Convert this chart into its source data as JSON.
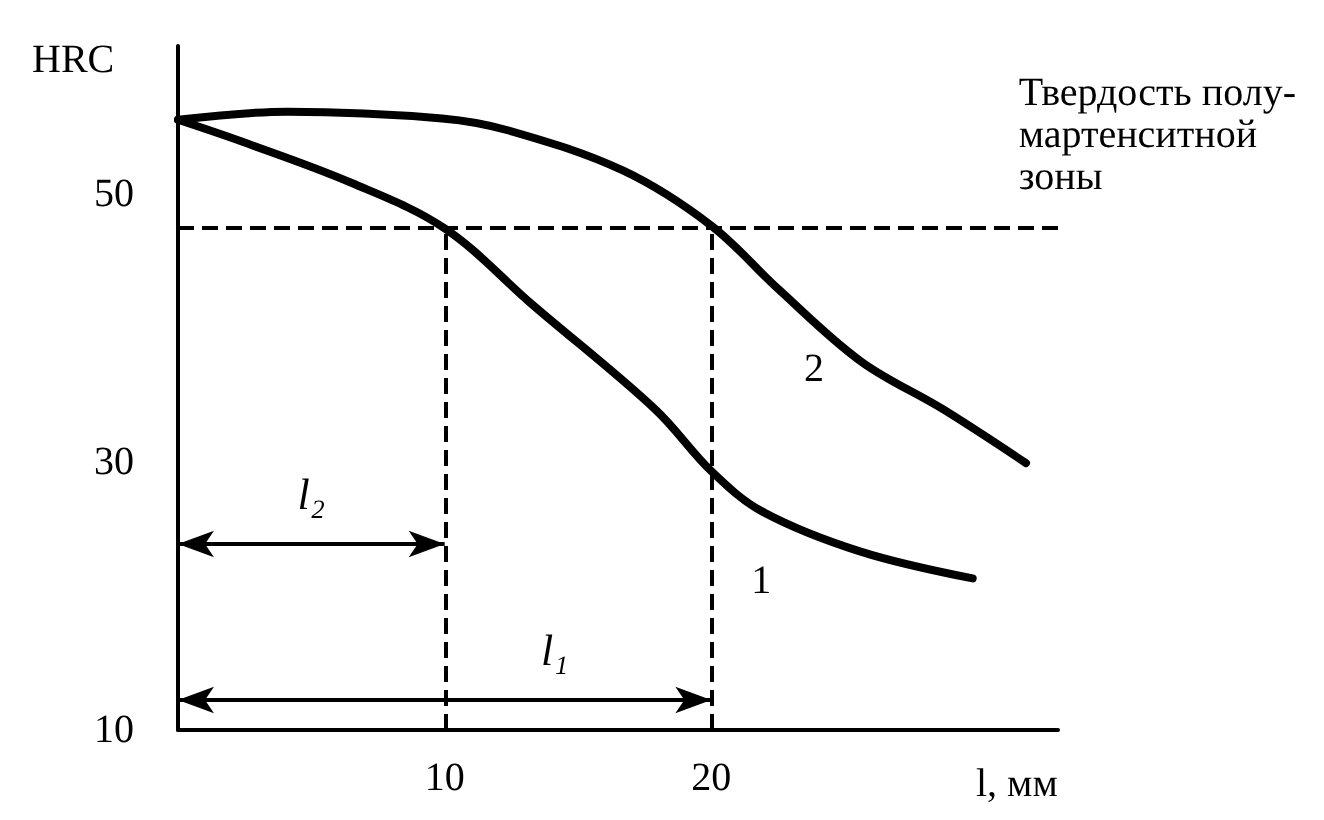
{
  "chart_data": {
    "type": "line",
    "ylabel": "HRC",
    "xlabel": "l, мм",
    "xlim": [
      0,
      33
    ],
    "ylim": [
      10,
      61
    ],
    "xticks": [
      10,
      20
    ],
    "yticks": [
      10,
      30,
      50
    ],
    "grid": false,
    "legend": false,
    "marker": "none",
    "line_style": "solid",
    "series": [
      {
        "name": "2",
        "color": "#000000",
        "x": [
          0,
          4.1,
          9.9,
          12.4,
          16.7,
          20,
          22.5,
          25.6,
          28.7,
          31.8
        ],
        "values": [
          55.5,
          56.1,
          55.6,
          54.7,
          51.7,
          47.6,
          42.9,
          37.5,
          33.9,
          29.9
        ]
      },
      {
        "name": "1",
        "color": "#000000",
        "x": [
          0,
          2.5,
          6.5,
          10,
          13.3,
          17.9,
          20,
          21.9,
          25.6,
          29.8
        ],
        "values": [
          55.5,
          53.8,
          50.8,
          47.4,
          41.7,
          33.9,
          29.3,
          26.3,
          23.3,
          21.3
        ]
      }
    ],
    "ref_lines": [
      {
        "axis": "y",
        "value": 47.5,
        "label": "Твердость полу-\nмартенситной\nзоны",
        "line_style": "dashed",
        "color": "#000000"
      },
      {
        "axis": "x",
        "value": 10,
        "line_style": "dashed",
        "color": "#000000"
      },
      {
        "axis": "x",
        "value": 20,
        "line_style": "dashed",
        "color": "#000000"
      }
    ],
    "annotations": [
      "l₂",
      "l₁"
    ]
  }
}
